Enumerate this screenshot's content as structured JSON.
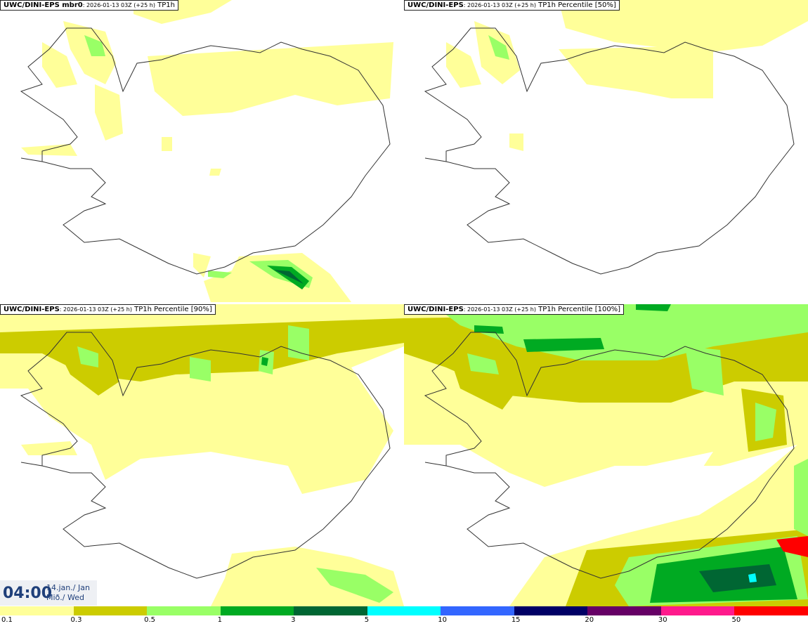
{
  "panels": [
    {
      "model": "UWC/DINI-EPS mbr0",
      "meta": ": 2026-01-13 03Z (+25 h)",
      "field": " TP1h"
    },
    {
      "model": "UWC/DINI-EPS",
      "meta": ": 2026-01-13 03Z (+25 h)",
      "field": " TP1h Percentile [50%]"
    },
    {
      "model": "UWC/DINI-EPS",
      "meta": ": 2026-01-13 03Z (+25 h)",
      "field": " TP1h Percentile [90%]"
    },
    {
      "model": "UWC/DINI-EPS",
      "meta": ": 2026-01-13 03Z (+25 h)",
      "field": " TP1h Percentile [100%]"
    }
  ],
  "valid_time": {
    "time": "04:00",
    "date_line1": "14.jan./ Jan",
    "date_line2": "Mið./ Wed"
  },
  "legend": {
    "ticks": [
      "0.1",
      "0.3",
      "0.5",
      "1",
      "3",
      "5",
      "10",
      "15",
      "20",
      "30",
      "50"
    ],
    "colors": [
      "#ffff99",
      "#cccc00",
      "#99ff66",
      "#00aa22",
      "#006633",
      "#00ffff",
      "#3366ff",
      "#000066",
      "#660066",
      "#ff1a8c",
      "#ff0000"
    ]
  }
}
